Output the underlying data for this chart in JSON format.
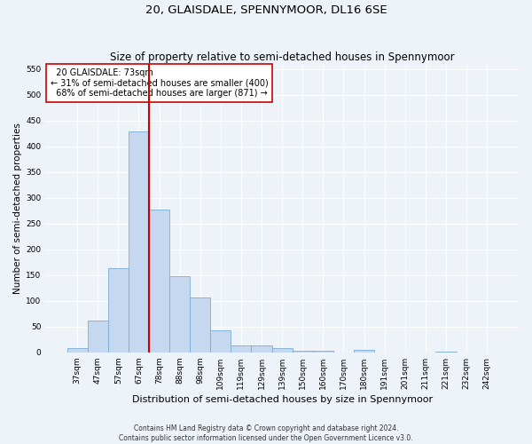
{
  "title": "20, GLAISDALE, SPENNYMOOR, DL16 6SE",
  "subtitle": "Size of property relative to semi-detached houses in Spennymoor",
  "xlabel": "Distribution of semi-detached houses by size in Spennymoor",
  "ylabel": "Number of semi-detached properties",
  "categories": [
    "37sqm",
    "47sqm",
    "57sqm",
    "67sqm",
    "78sqm",
    "88sqm",
    "98sqm",
    "109sqm",
    "119sqm",
    "129sqm",
    "139sqm",
    "150sqm",
    "160sqm",
    "170sqm",
    "180sqm",
    "191sqm",
    "201sqm",
    "211sqm",
    "221sqm",
    "232sqm",
    "242sqm"
  ],
  "values": [
    8,
    62,
    163,
    430,
    277,
    148,
    107,
    43,
    14,
    14,
    9,
    4,
    4,
    0,
    5,
    0,
    0,
    0,
    2,
    0,
    0
  ],
  "bar_color": "#c5d8f0",
  "bar_edge_color": "#7aadd4",
  "vline_x_index": 3.5,
  "vline_color": "#cc0000",
  "annotation_text": "  20 GLAISDALE: 73sqm  \n← 31% of semi-detached houses are smaller (400)\n  68% of semi-detached houses are larger (871) →",
  "annotation_box_color": "#ffffff",
  "annotation_box_edge_color": "#cc0000",
  "ylim": [
    0,
    560
  ],
  "yticks": [
    0,
    50,
    100,
    150,
    200,
    250,
    300,
    350,
    400,
    450,
    500,
    550
  ],
  "footer_line1": "Contains HM Land Registry data © Crown copyright and database right 2024.",
  "footer_line2": "Contains public sector information licensed under the Open Government Licence v3.0.",
  "background_color": "#eef2f9",
  "grid_color": "#ffffff",
  "title_fontsize": 9.5,
  "subtitle_fontsize": 8.5,
  "tick_fontsize": 6.5,
  "ylabel_fontsize": 7.5,
  "xlabel_fontsize": 8,
  "annotation_fontsize": 7,
  "footer_fontsize": 5.5
}
